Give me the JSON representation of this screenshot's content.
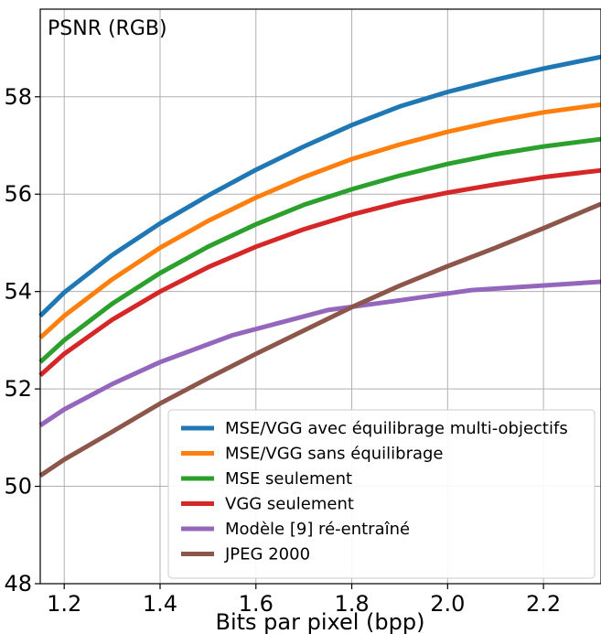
{
  "chart_data": {
    "type": "line",
    "title": "PSNR (RGB)",
    "xlabel": "Bits par pixel (bpp)",
    "ylabel": "",
    "xlim": [
      1.15,
      2.32
    ],
    "ylim": [
      48,
      59.8
    ],
    "xticks": [
      1.2,
      1.4,
      1.6,
      1.8,
      2.0,
      2.2
    ],
    "xtick_labels": [
      "1.2",
      "1.4",
      "1.6",
      "1.8",
      "2.0",
      "2.2"
    ],
    "yticks": [
      48,
      50,
      52,
      54,
      56,
      58
    ],
    "ytick_labels": [
      "48",
      "50",
      "52",
      "54",
      "56",
      "58"
    ],
    "grid": true,
    "legend_position": "lower-right",
    "series": [
      {
        "name": "MSE/VGG avec équilibrage multi-objectifs",
        "color": "#1f77b4",
        "x": [
          1.15,
          1.2,
          1.3,
          1.4,
          1.5,
          1.6,
          1.7,
          1.8,
          1.9,
          2.0,
          2.1,
          2.2,
          2.32
        ],
        "y": [
          53.5,
          53.98,
          54.75,
          55.4,
          55.97,
          56.5,
          56.98,
          57.42,
          57.8,
          58.1,
          58.35,
          58.58,
          58.82
        ]
      },
      {
        "name": "MSE/VGG sans équilibrage",
        "color": "#ff7f0e",
        "x": [
          1.15,
          1.2,
          1.3,
          1.4,
          1.5,
          1.6,
          1.7,
          1.8,
          1.9,
          2.0,
          2.1,
          2.2,
          2.32
        ],
        "y": [
          53.05,
          53.5,
          54.25,
          54.9,
          55.45,
          55.93,
          56.35,
          56.72,
          57.02,
          57.28,
          57.5,
          57.68,
          57.84
        ]
      },
      {
        "name": "MSE seulement",
        "color": "#2ca02c",
        "x": [
          1.15,
          1.2,
          1.3,
          1.4,
          1.5,
          1.6,
          1.7,
          1.8,
          1.9,
          2.0,
          2.1,
          2.2,
          2.32
        ],
        "y": [
          52.55,
          53.0,
          53.75,
          54.38,
          54.92,
          55.38,
          55.78,
          56.1,
          56.38,
          56.62,
          56.82,
          56.98,
          57.13
        ]
      },
      {
        "name": "VGG seulement",
        "color": "#d62728",
        "x": [
          1.15,
          1.2,
          1.3,
          1.4,
          1.5,
          1.6,
          1.7,
          1.8,
          1.9,
          2.0,
          2.1,
          2.2,
          2.32
        ],
        "y": [
          52.28,
          52.72,
          53.42,
          54.0,
          54.5,
          54.92,
          55.28,
          55.58,
          55.83,
          56.03,
          56.2,
          56.35,
          56.49
        ]
      },
      {
        "name": "Modèle [9] ré-entraîné",
        "color": "#9467bd",
        "x": [
          1.15,
          1.2,
          1.3,
          1.4,
          1.55,
          1.75,
          1.9,
          2.05,
          2.32
        ],
        "y": [
          51.25,
          51.58,
          52.1,
          52.55,
          53.1,
          53.62,
          53.82,
          54.03,
          54.2
        ]
      },
      {
        "name": "JPEG 2000",
        "color": "#8c564b",
        "x": [
          1.15,
          1.2,
          1.3,
          1.4,
          1.5,
          1.6,
          1.7,
          1.8,
          1.9,
          2.0,
          2.1,
          2.2,
          2.32
        ],
        "y": [
          50.22,
          50.55,
          51.12,
          51.7,
          52.22,
          52.72,
          53.2,
          53.68,
          54.12,
          54.52,
          54.9,
          55.3,
          55.8
        ]
      }
    ]
  }
}
